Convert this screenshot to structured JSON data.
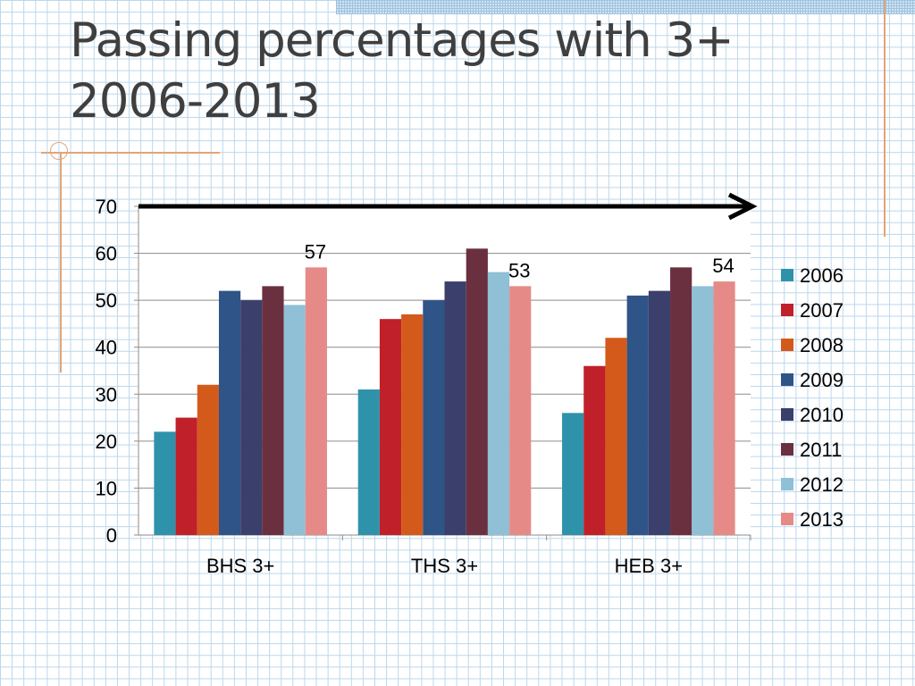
{
  "slide": {
    "title_line1": "Passing percentages with 3+",
    "title_line2": "2006-2013"
  },
  "chart_data": {
    "type": "bar",
    "title": "",
    "xlabel": "",
    "ylabel": "",
    "ylim": [
      0,
      70
    ],
    "y_ticks": [
      0,
      10,
      20,
      30,
      40,
      50,
      60,
      70
    ],
    "grid": true,
    "legend_position": "right",
    "categories": [
      "BHS 3+",
      "THS 3+",
      "HEB 3+"
    ],
    "series": [
      {
        "name": "2006",
        "color": "#2e93aa",
        "values": [
          22,
          31,
          26
        ]
      },
      {
        "name": "2007",
        "color": "#c0202a",
        "values": [
          25,
          46,
          36
        ]
      },
      {
        "name": "2008",
        "color": "#d35a1b",
        "values": [
          32,
          47,
          42
        ]
      },
      {
        "name": "2009",
        "color": "#2f5487",
        "values": [
          52,
          50,
          51
        ]
      },
      {
        "name": "2010",
        "color": "#3b3f6b",
        "values": [
          50,
          54,
          52
        ]
      },
      {
        "name": "2011",
        "color": "#6b3040",
        "values": [
          53,
          61,
          57
        ]
      },
      {
        "name": "2012",
        "color": "#8fc0d6",
        "values": [
          49,
          56,
          53
        ]
      },
      {
        "name": "2013",
        "color": "#e68a88",
        "values": [
          57,
          53,
          54
        ]
      }
    ],
    "data_labels": [
      {
        "category": "BHS 3+",
        "series": "2013",
        "text": "57"
      },
      {
        "category": "THS 3+",
        "series": "2013",
        "text": "53"
      },
      {
        "category": "HEB 3+",
        "series": "2013",
        "text": "54"
      }
    ],
    "annotations": [
      {
        "type": "arrow",
        "direction": "right",
        "color": "#000000",
        "at_value": 70
      }
    ]
  }
}
